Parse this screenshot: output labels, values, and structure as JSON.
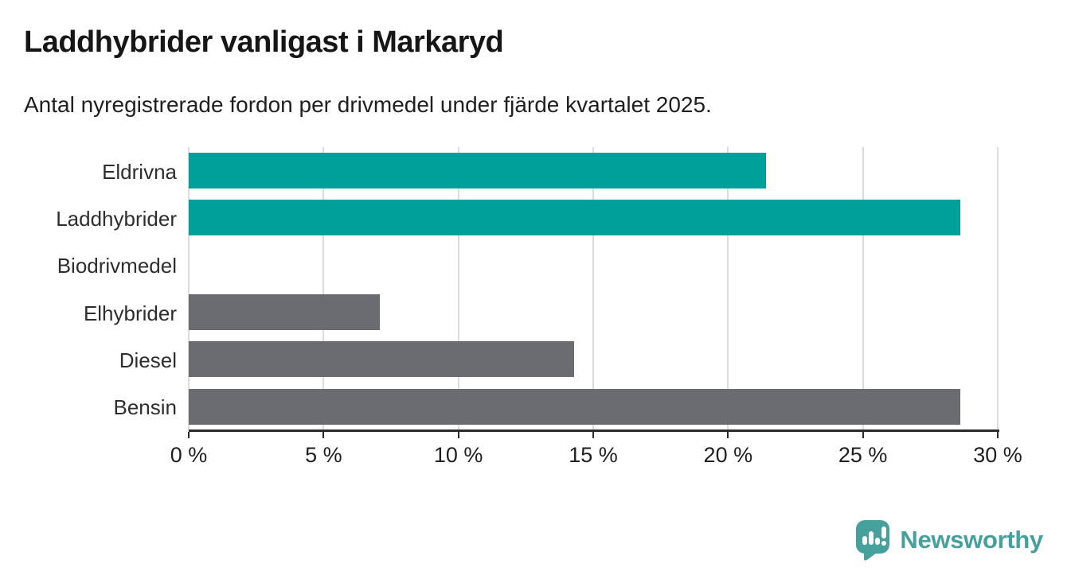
{
  "header": {
    "title": "Laddhybrider vanligast i Markaryd",
    "subtitle": "Antal nyregistrerade fordon per drivmedel under fjärde kvartalet 2025."
  },
  "chart_data": {
    "type": "bar",
    "orientation": "horizontal",
    "title": "Laddhybrider vanligast i Markaryd",
    "subtitle": "Antal nyregistrerade fordon per drivmedel under fjärde kvartalet 2025.",
    "categories": [
      "Eldrivna",
      "Laddhybrider",
      "Biodrivmedel",
      "Elhybrider",
      "Diesel",
      "Bensin"
    ],
    "values": [
      21.4,
      28.6,
      0,
      7.1,
      14.3,
      28.6
    ],
    "unit": "%",
    "xlabel": "",
    "ylabel": "",
    "xlim": [
      0,
      30
    ],
    "x_ticks": [
      0,
      5,
      10,
      15,
      20,
      25,
      30
    ],
    "x_tick_labels": [
      "0 %",
      "5 %",
      "10 %",
      "15 %",
      "20 %",
      "25 %",
      "30 %"
    ],
    "grid": true,
    "legend": false,
    "bar_colors": [
      "#00a09a",
      "#00a09a",
      "#6b6b72",
      "#6b6b72",
      "#6b6b72",
      "#6b6b72"
    ],
    "highlight_color": "#00a09a",
    "default_color": "#6b6b72"
  },
  "style": {
    "gridline_color": "#dcdcdc",
    "axis_color": "#2b2b2b",
    "title_color": "#161616",
    "label_color": "#2e2e2e"
  },
  "branding": {
    "logo_text": "Newsworthy",
    "logo_color": "#46a09c",
    "logo_icon": "speech-bubble-bar-chart-icon"
  }
}
